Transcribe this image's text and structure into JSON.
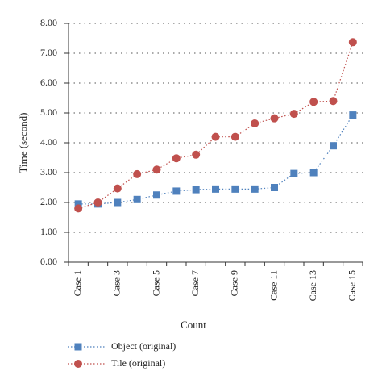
{
  "chart_data": {
    "type": "line",
    "xlabel": "Count",
    "ylabel": "Time (second)",
    "categories": [
      "Case 1",
      null,
      "Case 3",
      null,
      "Case 5",
      null,
      "Case 7",
      null,
      "Case 9",
      null,
      "Case 11",
      null,
      "Case 13",
      null,
      "Case 15"
    ],
    "series": [
      {
        "name": "Object (original)",
        "color": "#4f81bd",
        "marker": "square",
        "values": [
          1.95,
          1.95,
          2.0,
          2.1,
          2.25,
          2.38,
          2.43,
          2.45,
          2.45,
          2.45,
          2.5,
          2.97,
          3.0,
          3.9,
          4.93
        ]
      },
      {
        "name": "Tile (original)",
        "color": "#c0504d",
        "marker": "circle",
        "values": [
          1.8,
          2.0,
          2.47,
          2.95,
          3.1,
          3.48,
          3.6,
          4.2,
          4.2,
          4.65,
          4.82,
          4.97,
          5.37,
          5.4,
          7.37
        ]
      }
    ],
    "ylim": [
      0,
      8
    ],
    "yticks": [
      {
        "value": 0,
        "label": "0.00"
      },
      {
        "value": 1,
        "label": "1.00"
      },
      {
        "value": 2,
        "label": "2.00"
      },
      {
        "value": 3,
        "label": "3.00"
      },
      {
        "value": 4,
        "label": "4.00"
      },
      {
        "value": 5,
        "label": "5.00"
      },
      {
        "value": 6,
        "label": "6.00"
      },
      {
        "value": 7,
        "label": "7.00"
      },
      {
        "value": 8,
        "label": "8.00"
      }
    ],
    "grid": true,
    "legend": "bottom-left"
  }
}
